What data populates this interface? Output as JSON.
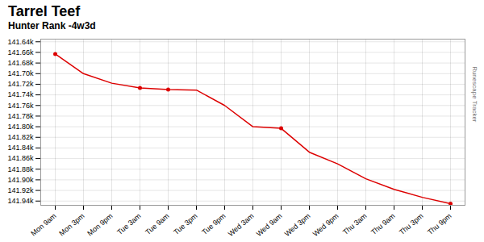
{
  "chart_data": {
    "type": "line",
    "title": "Tarrel Teef",
    "subtitle": "Hunter Rank -4w3d",
    "annotation": "Runescape Tracker",
    "categories": [
      "Mon 9am",
      "Mon 3pm",
      "Mon 9pm",
      "Tue 3am",
      "Tue 9am",
      "Tue 3pm",
      "Tue 9pm",
      "Wed 3am",
      "Wed 9am",
      "Wed 3pm",
      "Wed 9pm",
      "Thu 3am",
      "Thu 9am",
      "Thu 3pm",
      "Thu 9pm"
    ],
    "values": [
      141663,
      141700,
      141718,
      141727,
      141730,
      141731,
      141760,
      141800,
      141803,
      141848,
      141870,
      141898,
      141918,
      141933,
      141945
    ],
    "color": "#dd0000",
    "marker": "circle",
    "marker_indices": [
      0,
      3,
      4,
      8,
      14
    ],
    "ylim": [
      141948,
      141635
    ],
    "yticks": [
      {
        "value": 141640,
        "label": "141.64k"
      },
      {
        "value": 141660,
        "label": "141.66k"
      },
      {
        "value": 141680,
        "label": "141.68k"
      },
      {
        "value": 141700,
        "label": "141.70k"
      },
      {
        "value": 141720,
        "label": "141.72k"
      },
      {
        "value": 141740,
        "label": "141.74k"
      },
      {
        "value": 141760,
        "label": "141.76k"
      },
      {
        "value": 141780,
        "label": "141.78k"
      },
      {
        "value": 141800,
        "label": "141.80k"
      },
      {
        "value": 141820,
        "label": "141.82k"
      },
      {
        "value": 141840,
        "label": "141.84k"
      },
      {
        "value": 141860,
        "label": "141.86k"
      },
      {
        "value": 141880,
        "label": "141.88k"
      },
      {
        "value": 141900,
        "label": "141.90k"
      },
      {
        "value": 141920,
        "label": "141.92k"
      },
      {
        "value": 141940,
        "label": "141.94k"
      }
    ],
    "grid": true
  }
}
